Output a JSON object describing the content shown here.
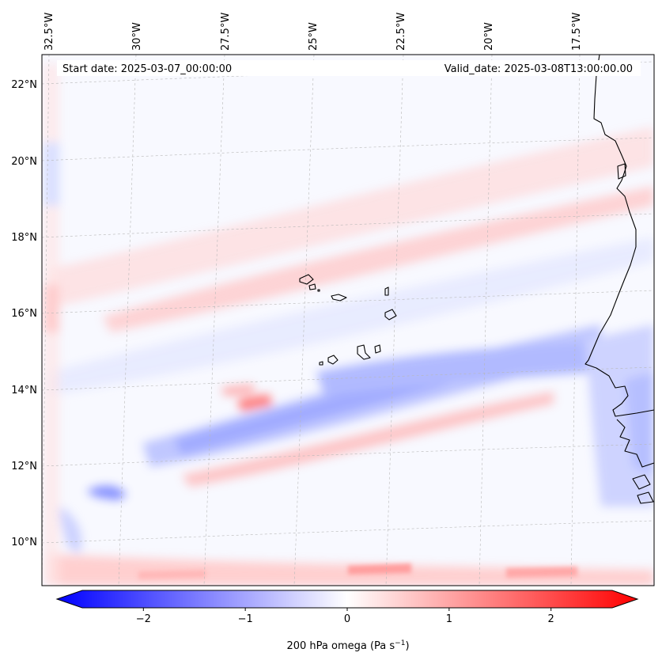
{
  "map": {
    "header_left": "Start date: 2025-03-07_00:00:00",
    "header_right": "Valid_date: 2025-03-08T13:00:00.00",
    "lon_labels": [
      "32.5°W",
      "30°W",
      "27.5°W",
      "25°W",
      "22.5°W",
      "20°W",
      "17.5°W"
    ],
    "lat_labels": [
      "22°N",
      "20°N",
      "18°N",
      "16°N",
      "14°N",
      "12°N",
      "10°N"
    ],
    "colors": {
      "negative": "#0000ff",
      "positive": "#ff0000",
      "neutral": "#ffffff",
      "coast": "#000000"
    }
  },
  "colorbar": {
    "tick_labels": [
      "−2",
      "−1",
      "0",
      "1",
      "2"
    ],
    "title": "200 hPa omega (Pa s",
    "title_exp": "−1",
    "title_close": ")",
    "range": [
      -2.6,
      2.6
    ]
  }
}
